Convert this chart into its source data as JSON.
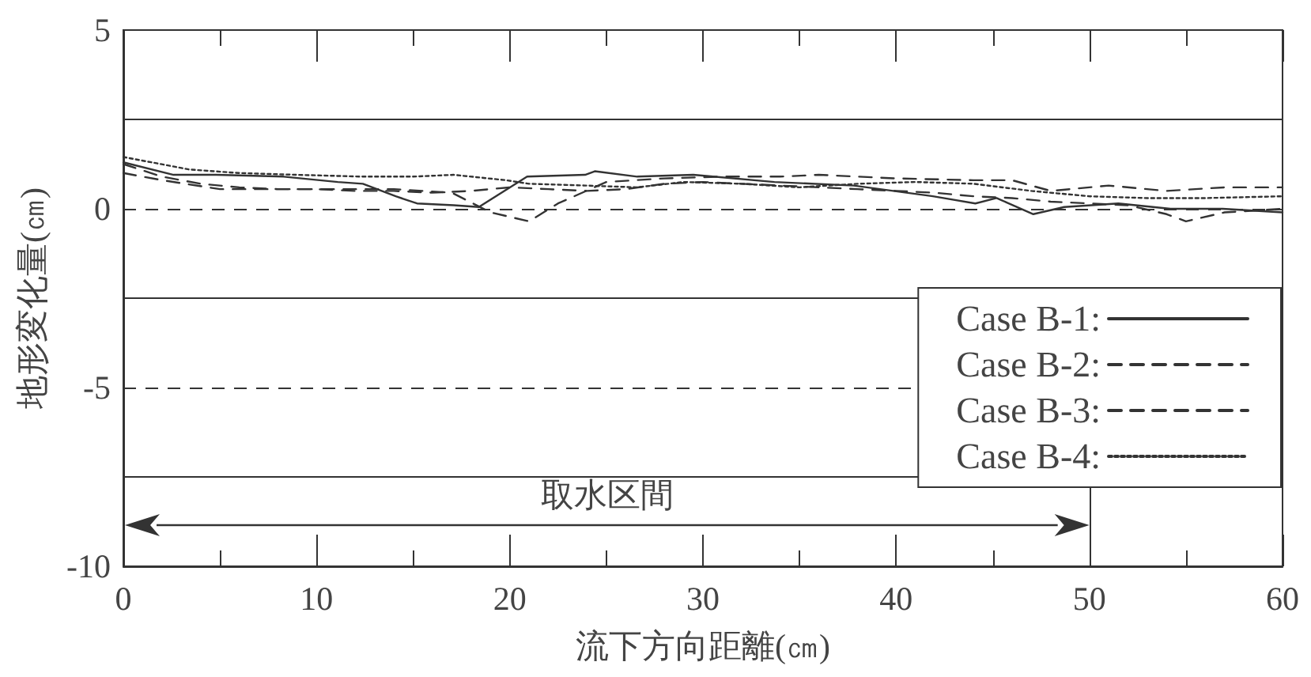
{
  "chart_data": {
    "type": "line",
    "xlabel": "流下方向距離(㎝)",
    "ylabel": "地形変化量(㎝)",
    "xlim": [
      0,
      60
    ],
    "xticks": [
      0,
      {
        "value": 5,
        "label": null
      },
      10,
      {
        "value": 15,
        "label": null
      },
      20,
      {
        "value": 25,
        "label": null
      },
      30,
      {
        "value": 35,
        "label": null
      },
      40,
      {
        "value": 45,
        "label": null
      },
      50,
      {
        "value": 55,
        "label": null
      },
      60
    ],
    "ylim": [
      -10,
      5
    ],
    "yticks": [
      -10,
      -5,
      0,
      5
    ],
    "legend": "bottom right",
    "series": [
      {
        "name": "Case B-1:",
        "color": "#333333",
        "line_style": "solid",
        "x": [
          0,
          2.6,
          4.8,
          8.3,
          11.1,
          12.4,
          14.1,
          15.2,
          17.1,
          18.4,
          20.9,
          23.9,
          24.4,
          26.6,
          29.5,
          33.7,
          37.8,
          41.9,
          44.1,
          45.2,
          47.1,
          48.7,
          51.5,
          54.2,
          56.9,
          60
        ],
        "values": [
          1.3,
          0.95,
          0.95,
          0.9,
          0.75,
          0.7,
          0.35,
          0.15,
          0.1,
          0.05,
          0.9,
          0.95,
          1.05,
          0.9,
          0.95,
          0.75,
          0.65,
          0.35,
          0.15,
          0.3,
          -0.15,
          0.05,
          0.15,
          0,
          0,
          -0.1
        ]
      },
      {
        "name": "Case B-2:",
        "color": "#333333",
        "line_style": "dashed",
        "x": [
          0,
          2,
          5,
          8,
          11,
          14,
          17,
          19,
          21,
          22.5,
          25,
          28,
          31,
          34,
          36,
          40,
          44,
          46,
          48,
          51,
          54,
          57,
          60
        ],
        "values": [
          1,
          0.8,
          0.55,
          0.55,
          0.55,
          0.55,
          0.45,
          -0.1,
          -0.35,
          0.15,
          0.75,
          0.85,
          0.9,
          0.9,
          0.95,
          0.85,
          0.8,
          0.8,
          0.5,
          0.65,
          0.5,
          0.6,
          0.6
        ]
      },
      {
        "name": "Case B-3:",
        "color": "#333333",
        "line_style": "dashed",
        "x": [
          0,
          2,
          4,
          6,
          8,
          10,
          12,
          14,
          16,
          18,
          20,
          22,
          24,
          26,
          28,
          30,
          32,
          34,
          36,
          38,
          40,
          42,
          44,
          46,
          48,
          50,
          52,
          54,
          55,
          57,
          60
        ],
        "values": [
          1.25,
          0.9,
          0.7,
          0.6,
          0.55,
          0.55,
          0.5,
          0.5,
          0.45,
          0.5,
          0.6,
          0.55,
          0.5,
          0.55,
          0.7,
          0.75,
          0.7,
          0.65,
          0.6,
          0.55,
          0.5,
          0.45,
          0.35,
          0.3,
          0.2,
          0.15,
          0.1,
          -0.15,
          -0.35,
          -0.1,
          0
        ]
      },
      {
        "name": "Case B-4:",
        "color": "#333333",
        "line_style": "dotted",
        "x": [
          0,
          3.4,
          6,
          9,
          12.4,
          15,
          17.1,
          19.8,
          21,
          23.9,
          26.6,
          29,
          32,
          35,
          38,
          41,
          44,
          47,
          50,
          53,
          56,
          60
        ],
        "values": [
          1.45,
          1.1,
          1,
          0.95,
          0.9,
          0.9,
          0.95,
          0.8,
          0.7,
          0.65,
          0.6,
          0.75,
          0.7,
          0.6,
          0.7,
          0.75,
          0.7,
          0.5,
          0.35,
          0.3,
          0.3,
          0.35
        ]
      }
    ],
    "ref_lines": [
      {
        "axis": "y",
        "value": 2.5,
        "line_style": "solid"
      },
      {
        "axis": "y",
        "value": 0,
        "line_style": "dashed"
      },
      {
        "axis": "y",
        "value": -2.5,
        "line_style": "solid"
      },
      {
        "axis": "y",
        "value": -5,
        "line_style": "dashed"
      },
      {
        "axis": "y",
        "value": -7.5,
        "line_style": "solid"
      },
      {
        "axis": "x",
        "value": 50,
        "line_style": "solid"
      }
    ],
    "annotations": [
      "取水区間"
    ]
  }
}
